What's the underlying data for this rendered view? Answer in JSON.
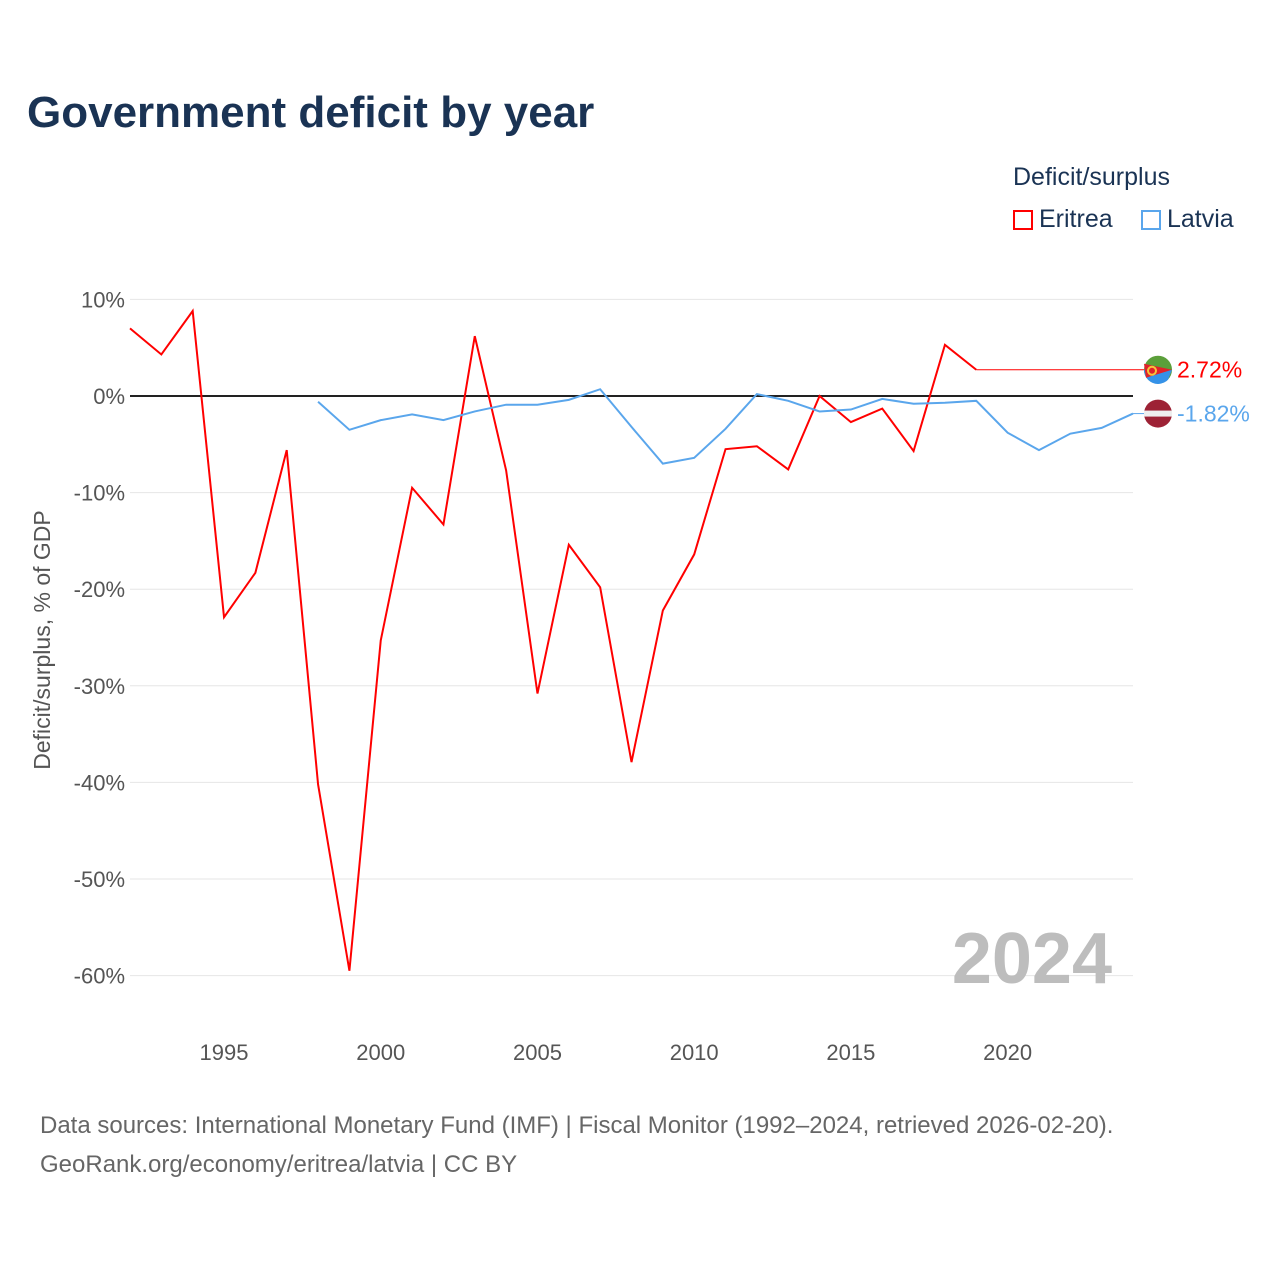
{
  "title": "Government deficit by year",
  "legend": {
    "title": "Deficit/surplus",
    "items": [
      {
        "name": "Eritrea",
        "color": "#ff0000"
      },
      {
        "name": "Latvia",
        "color": "#5aa6ec"
      }
    ]
  },
  "source_lines": [
    "Data sources: International Monetary Fund (IMF) | Fiscal Monitor (1992–2024, retrieved 2026-02-20).",
    "GeoRank.org/economy/eritrea/latvia | CC BY"
  ],
  "chart_data": {
    "type": "line",
    "title": "Government deficit by year",
    "ylabel": "Deficit/surplus, % of GDP",
    "xlabel": "",
    "xlim": [
      1992,
      2024
    ],
    "ylim": [
      -65,
      10
    ],
    "x_ticks": [
      1995,
      2000,
      2005,
      2010,
      2015,
      2020
    ],
    "y_ticks": [
      10,
      0,
      -10,
      -20,
      -30,
      -40,
      -50,
      -60
    ],
    "y_tick_labels": [
      "10%",
      "0%",
      "-10%",
      "-20%",
      "-30%",
      "-40%",
      "-50%",
      "-60%"
    ],
    "grid": true,
    "year_watermark": "2024",
    "series": [
      {
        "name": "Eritrea",
        "color": "#ff0000",
        "end_label": "2.72%",
        "x": [
          1992,
          1993,
          1994,
          1995,
          1996,
          1997,
          1998,
          1999,
          2000,
          2001,
          2002,
          2003,
          2004,
          2005,
          2006,
          2007,
          2008,
          2009,
          2010,
          2011,
          2012,
          2013,
          2014,
          2015,
          2016,
          2017,
          2018,
          2019
        ],
        "values": [
          7.0,
          4.3,
          8.8,
          -22.9,
          -18.3,
          -5.6,
          -40.2,
          -59.5,
          -25.3,
          -9.5,
          -13.3,
          6.2,
          -7.7,
          -30.8,
          -15.4,
          -19.8,
          -37.9,
          -22.2,
          -16.4,
          -5.5,
          -5.2,
          -7.6,
          0.0,
          -2.7,
          -1.3,
          -5.7,
          5.3,
          2.72
        ]
      },
      {
        "name": "Latvia",
        "color": "#5aa6ec",
        "end_label": "-1.82%",
        "x": [
          1998,
          1999,
          2000,
          2001,
          2002,
          2003,
          2004,
          2005,
          2006,
          2007,
          2008,
          2009,
          2010,
          2011,
          2012,
          2013,
          2014,
          2015,
          2016,
          2017,
          2018,
          2019,
          2020,
          2021,
          2022,
          2023,
          2024
        ],
        "values": [
          -0.6,
          -3.5,
          -2.5,
          -1.9,
          -2.5,
          -1.6,
          -0.9,
          -0.9,
          -0.4,
          0.7,
          -3.2,
          -7.0,
          -6.4,
          -3.4,
          0.2,
          -0.5,
          -1.6,
          -1.4,
          -0.3,
          -0.8,
          -0.7,
          -0.5,
          -3.8,
          -5.6,
          -3.9,
          -3.3,
          -1.82
        ]
      }
    ]
  }
}
